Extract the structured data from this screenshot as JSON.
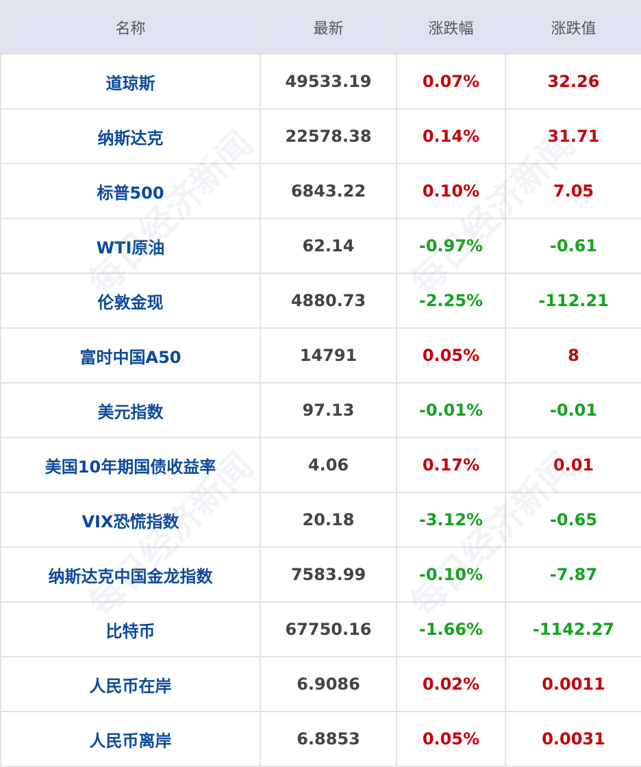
{
  "colors": {
    "header_bg": "#dfe3f0",
    "name": "#0b4a9a",
    "up": "#c4000a",
    "down": "#14a31f",
    "value": "#444444"
  },
  "watermark": "每日经济新闻",
  "headers": [
    "名称",
    "最新",
    "涨跌幅",
    "涨跌值"
  ],
  "rows": [
    {
      "name": "道琼斯",
      "latest": "49533.19",
      "pct": "0.07%",
      "chg": "32.26",
      "dir": "up"
    },
    {
      "name": "纳斯达克",
      "latest": "22578.38",
      "pct": "0.14%",
      "chg": "31.71",
      "dir": "up"
    },
    {
      "name": "标普500",
      "latest": "6843.22",
      "pct": "0.10%",
      "chg": "7.05",
      "dir": "up"
    },
    {
      "name": "WTI原油",
      "latest": "62.14",
      "pct": "-0.97%",
      "chg": "-0.61",
      "dir": "down"
    },
    {
      "name": "伦敦金现",
      "latest": "4880.73",
      "pct": "-2.25%",
      "chg": "-112.21",
      "dir": "down"
    },
    {
      "name": "富时中国A50",
      "latest": "14791",
      "pct": "0.05%",
      "chg": "8",
      "dir": "up"
    },
    {
      "name": "美元指数",
      "latest": "97.13",
      "pct": "-0.01%",
      "chg": "-0.01",
      "dir": "down"
    },
    {
      "name": "美国10年期国债收益率",
      "latest": "4.06",
      "pct": "0.17%",
      "chg": "0.01",
      "dir": "up"
    },
    {
      "name": "VIX恐慌指数",
      "latest": "20.18",
      "pct": "-3.12%",
      "chg": "-0.65",
      "dir": "down"
    },
    {
      "name": "纳斯达克中国金龙指数",
      "latest": "7583.99",
      "pct": "-0.10%",
      "chg": "-7.87",
      "dir": "down"
    },
    {
      "name": "比特币",
      "latest": "67750.16",
      "pct": "-1.66%",
      "chg": "-1142.27",
      "dir": "down"
    },
    {
      "name": "人民币在岸",
      "latest": "6.9086",
      "pct": "0.02%",
      "chg": "0.0011",
      "dir": "up"
    },
    {
      "name": "人民币离岸",
      "latest": "6.8853",
      "pct": "0.05%",
      "chg": "0.0031",
      "dir": "up"
    }
  ]
}
